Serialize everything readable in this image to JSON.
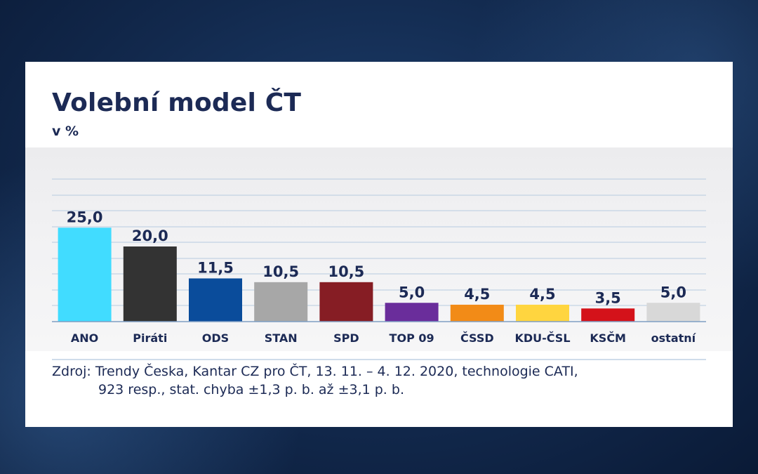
{
  "chart_data": {
    "type": "bar",
    "title": "Volební model ČT",
    "subtitle": "v %",
    "categories": [
      "ANO",
      "Piráti",
      "ODS",
      "STAN",
      "SPD",
      "TOP 09",
      "ČSSD",
      "KDU-ČSL",
      "KSČM",
      "ostatní"
    ],
    "values": [
      25.0,
      20.0,
      11.5,
      10.5,
      10.5,
      5.0,
      4.5,
      4.5,
      3.5,
      5.0
    ],
    "value_labels": [
      "25,0",
      "20,0",
      "11,5",
      "10,5",
      "10,5",
      "5,0",
      "4,5",
      "4,5",
      "3,5",
      "5,0"
    ],
    "colors": [
      "#41dcff",
      "#333333",
      "#0a4c9b",
      "#a7a7a7",
      "#861d24",
      "#6a2d9b",
      "#f28b17",
      "#ffd53f",
      "#d4121a",
      "#d8d8d8"
    ],
    "ylim": [
      0,
      35
    ],
    "gridlines": true,
    "source_line1": "Zdroj: Trendy Česka, Kantar CZ pro ČT, 13. 11. – 4. 12. 2020, technologie CATI,",
    "source_line2": "923 resp., stat. chyba ±1,3 p. b. až ±3,1 p. b."
  }
}
